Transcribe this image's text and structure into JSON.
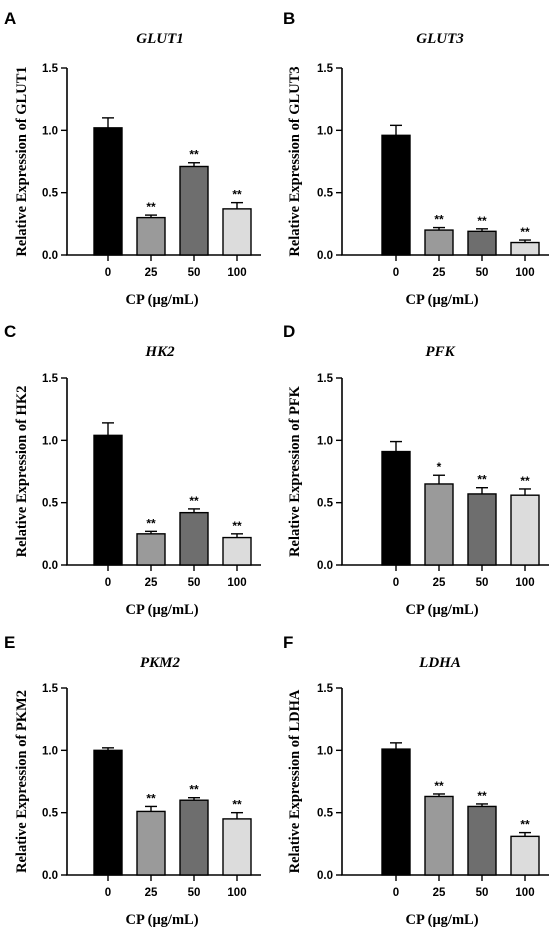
{
  "bar_colors": [
    "#000000",
    "#9a9a9a",
    "#6e6e6e",
    "#dcdcdc"
  ],
  "chart_data": [
    {
      "panel": "A",
      "type": "bar",
      "title": "GLUT1",
      "ylabel": "Relative Expression of GLUT1",
      "xlabel": "CP (μg/mL)",
      "categories": [
        "0",
        "25",
        "50",
        "100"
      ],
      "values": [
        1.02,
        0.3,
        0.71,
        0.37
      ],
      "errors": [
        0.08,
        0.02,
        0.03,
        0.05
      ],
      "significance": [
        "",
        "**",
        "**",
        "**"
      ],
      "ylim": [
        0,
        1.5
      ],
      "yticks": [
        "0.0",
        "0.5",
        "1.0",
        "1.5"
      ]
    },
    {
      "panel": "B",
      "type": "bar",
      "title": "GLUT3",
      "ylabel": "Relative Expression of GLUT3",
      "xlabel": "CP (μg/mL)",
      "categories": [
        "0",
        "25",
        "50",
        "100"
      ],
      "values": [
        0.96,
        0.2,
        0.19,
        0.1
      ],
      "errors": [
        0.08,
        0.02,
        0.02,
        0.02
      ],
      "significance": [
        "",
        "**",
        "**",
        "**"
      ],
      "ylim": [
        0,
        1.5
      ],
      "yticks": [
        "0.0",
        "0.5",
        "1.0",
        "1.5"
      ]
    },
    {
      "panel": "C",
      "type": "bar",
      "title": "HK2",
      "ylabel": "Relative Expression of HK2",
      "xlabel": "CP (μg/mL)",
      "categories": [
        "0",
        "25",
        "50",
        "100"
      ],
      "values": [
        1.04,
        0.25,
        0.42,
        0.22
      ],
      "errors": [
        0.1,
        0.02,
        0.03,
        0.03
      ],
      "significance": [
        "",
        "**",
        "**",
        "**"
      ],
      "ylim": [
        0,
        1.5
      ],
      "yticks": [
        "0.0",
        "0.5",
        "1.0",
        "1.5"
      ]
    },
    {
      "panel": "D",
      "type": "bar",
      "title": "PFK",
      "ylabel": "Relative Expression of PFK",
      "xlabel": "CP (μg/mL)",
      "categories": [
        "0",
        "25",
        "50",
        "100"
      ],
      "values": [
        0.91,
        0.65,
        0.57,
        0.56
      ],
      "errors": [
        0.08,
        0.07,
        0.05,
        0.05
      ],
      "significance": [
        "",
        "*",
        "**",
        "**"
      ],
      "ylim": [
        0,
        1.5
      ],
      "yticks": [
        "0.0",
        "0.5",
        "1.0",
        "1.5"
      ]
    },
    {
      "panel": "E",
      "type": "bar",
      "title": "PKM2",
      "ylabel": "Relative Expression of PKM2",
      "xlabel": "CP (μg/mL)",
      "categories": [
        "0",
        "25",
        "50",
        "100"
      ],
      "values": [
        1.0,
        0.51,
        0.6,
        0.45
      ],
      "errors": [
        0.02,
        0.04,
        0.02,
        0.05
      ],
      "significance": [
        "",
        "**",
        "**",
        "**"
      ],
      "ylim": [
        0,
        1.5
      ],
      "yticks": [
        "0.0",
        "0.5",
        "1.0",
        "1.5"
      ]
    },
    {
      "panel": "F",
      "type": "bar",
      "title": "LDHA",
      "ylabel": "Relative Expression of LDHA",
      "xlabel": "CP (μg/mL)",
      "categories": [
        "0",
        "25",
        "50",
        "100"
      ],
      "values": [
        1.01,
        0.63,
        0.55,
        0.31
      ],
      "errors": [
        0.05,
        0.02,
        0.02,
        0.03
      ],
      "significance": [
        "",
        "**",
        "**",
        "**"
      ],
      "ylim": [
        0,
        1.5
      ],
      "yticks": [
        "0.0",
        "0.5",
        "1.0",
        "1.5"
      ]
    }
  ]
}
